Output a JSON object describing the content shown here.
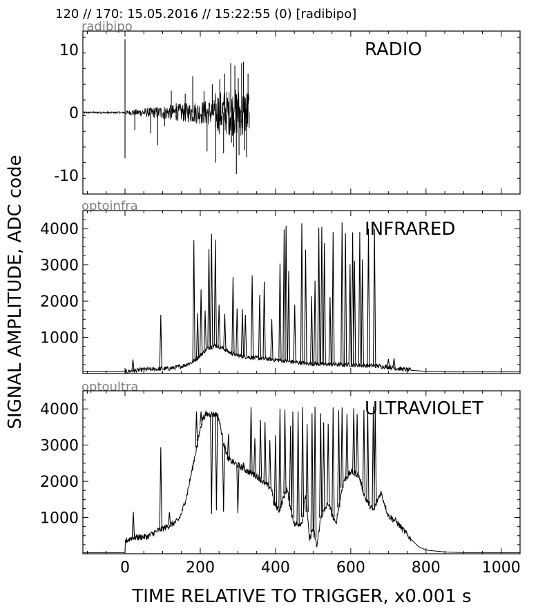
{
  "header": "120 // 170:   15.05.2016 // 15:22:55 (0)  [radibipo]",
  "ylabel": "SIGNAL AMPLITUDE,  ADC code",
  "xlabel": "TIME RELATIVE TO TRIGGER,   x0.001 s",
  "chart_data": [
    {
      "type": "line",
      "id": "radibipo",
      "title": "RADIO",
      "xlim": [
        -112,
        1050
      ],
      "ylim": [
        -13,
        13
      ],
      "xticks": [
        0,
        200,
        400,
        600,
        800,
        1000
      ],
      "yticks": [
        -10,
        0,
        10
      ],
      "ytick_labels": [
        "-10",
        "0",
        "10"
      ],
      "peaks": [
        {
          "x": 0,
          "y": 11.7
        },
        {
          "x": 0,
          "y": -7.3
        },
        {
          "x": 26,
          "y": -2.8
        },
        {
          "x": 68,
          "y": -3.3
        },
        {
          "x": 87,
          "y": -5.2
        },
        {
          "x": 105,
          "y": -2.2
        },
        {
          "x": 123,
          "y": 3.5
        },
        {
          "x": 136,
          "y": 1.5
        },
        {
          "x": 160,
          "y": 3.0
        },
        {
          "x": 180,
          "y": 5.8
        },
        {
          "x": 210,
          "y": 3.4
        },
        {
          "x": 218,
          "y": -6.2
        },
        {
          "x": 232,
          "y": 4.5
        },
        {
          "x": 241,
          "y": -8.0
        },
        {
          "x": 252,
          "y": 5.3
        },
        {
          "x": 262,
          "y": -6.5
        },
        {
          "x": 265,
          "y": 6.2
        },
        {
          "x": 276,
          "y": -3.5
        },
        {
          "x": 281,
          "y": 7.9
        },
        {
          "x": 283,
          "y": -4.8
        },
        {
          "x": 289,
          "y": -5.5
        },
        {
          "x": 292,
          "y": 7.5
        },
        {
          "x": 296,
          "y": -9.8
        },
        {
          "x": 301,
          "y": 5.5
        },
        {
          "x": 303,
          "y": -6.8
        },
        {
          "x": 310,
          "y": 7.9
        },
        {
          "x": 313,
          "y": -3.5
        },
        {
          "x": 315,
          "y": 8.1
        },
        {
          "x": 318,
          "y": -6.0
        },
        {
          "x": 323,
          "y": -7.1
        },
        {
          "x": 327,
          "y": 6.2
        },
        {
          "x": 330,
          "y": -2.5
        }
      ]
    },
    {
      "type": "line",
      "id": "optoinfra",
      "title": "INFRARED",
      "xlim": [
        -112,
        1050
      ],
      "ylim": [
        0,
        4500
      ],
      "xticks": [
        0,
        200,
        400,
        600,
        800,
        1000
      ],
      "yticks": [
        1000,
        2000,
        3000,
        4000
      ],
      "ytick_labels": [
        "1000",
        "2000",
        "3000",
        "4000"
      ],
      "baseline": [
        [
          -112,
          50
        ],
        [
          0,
          50
        ],
        [
          50,
          110
        ],
        [
          120,
          140
        ],
        [
          150,
          200
        ],
        [
          180,
          320
        ],
        [
          200,
          500
        ],
        [
          220,
          700
        ],
        [
          240,
          780
        ],
        [
          260,
          700
        ],
        [
          280,
          570
        ],
        [
          300,
          500
        ],
        [
          330,
          450
        ],
        [
          360,
          420
        ],
        [
          400,
          380
        ],
        [
          440,
          330
        ],
        [
          480,
          280
        ],
        [
          520,
          260
        ],
        [
          560,
          250
        ],
        [
          600,
          240
        ],
        [
          640,
          220
        ],
        [
          670,
          210
        ],
        [
          700,
          180
        ],
        [
          730,
          130
        ],
        [
          760,
          90
        ],
        [
          800,
          60
        ],
        [
          850,
          45
        ],
        [
          1050,
          45
        ]
      ],
      "peaks": [
        {
          "x": 21,
          "y": 390
        },
        {
          "x": 95,
          "y": 1620
        },
        {
          "x": 183,
          "y": 3680
        },
        {
          "x": 193,
          "y": 1670
        },
        {
          "x": 202,
          "y": 2320
        },
        {
          "x": 213,
          "y": 1740
        },
        {
          "x": 223,
          "y": 3440
        },
        {
          "x": 230,
          "y": 3860
        },
        {
          "x": 240,
          "y": 3700
        },
        {
          "x": 250,
          "y": 1900
        },
        {
          "x": 265,
          "y": 1650
        },
        {
          "x": 287,
          "y": 2670
        },
        {
          "x": 298,
          "y": 1800
        },
        {
          "x": 312,
          "y": 1780
        },
        {
          "x": 320,
          "y": 1620
        },
        {
          "x": 338,
          "y": 2710
        },
        {
          "x": 358,
          "y": 2170
        },
        {
          "x": 370,
          "y": 2540
        },
        {
          "x": 390,
          "y": 1500
        },
        {
          "x": 412,
          "y": 3040
        },
        {
          "x": 423,
          "y": 3980
        },
        {
          "x": 428,
          "y": 4080
        },
        {
          "x": 435,
          "y": 2830
        },
        {
          "x": 451,
          "y": 1900
        },
        {
          "x": 470,
          "y": 4150
        },
        {
          "x": 480,
          "y": 3420
        },
        {
          "x": 496,
          "y": 2140
        },
        {
          "x": 505,
          "y": 2560
        },
        {
          "x": 515,
          "y": 4030
        },
        {
          "x": 523,
          "y": 4050
        },
        {
          "x": 530,
          "y": 3600
        },
        {
          "x": 545,
          "y": 2110
        },
        {
          "x": 553,
          "y": 3910
        },
        {
          "x": 577,
          "y": 4170
        },
        {
          "x": 586,
          "y": 3870
        },
        {
          "x": 598,
          "y": 3020
        },
        {
          "x": 605,
          "y": 3900
        },
        {
          "x": 610,
          "y": 3110
        },
        {
          "x": 624,
          "y": 3910
        },
        {
          "x": 631,
          "y": 3150
        },
        {
          "x": 647,
          "y": 4000
        },
        {
          "x": 663,
          "y": 4000
        },
        {
          "x": 700,
          "y": 400
        },
        {
          "x": 715,
          "y": 420
        }
      ]
    },
    {
      "type": "line",
      "id": "optoultra",
      "title": "ULTRAVIOLET",
      "xlim": [
        -112,
        1050
      ],
      "ylim": [
        0,
        4500
      ],
      "xticks": [
        0,
        200,
        400,
        600,
        800,
        1000
      ],
      "yticks": [
        1000,
        2000,
        3000,
        4000
      ],
      "ytick_labels": [
        "1000",
        "2000",
        "3000",
        "4000"
      ],
      "baseline": [
        [
          -112,
          30
        ],
        [
          0,
          30
        ],
        [
          1,
          350
        ],
        [
          20,
          450
        ],
        [
          60,
          470
        ],
        [
          80,
          600
        ],
        [
          110,
          740
        ],
        [
          140,
          900
        ],
        [
          150,
          1100
        ],
        [
          165,
          1650
        ],
        [
          180,
          2400
        ],
        [
          195,
          3200
        ],
        [
          205,
          3700
        ],
        [
          215,
          3850
        ],
        [
          245,
          3850
        ],
        [
          250,
          3700
        ],
        [
          262,
          3050
        ],
        [
          275,
          2600
        ],
        [
          300,
          2450
        ],
        [
          330,
          2250
        ],
        [
          350,
          2150
        ],
        [
          370,
          1950
        ],
        [
          390,
          1800
        ],
        [
          395,
          1400
        ],
        [
          410,
          1200
        ],
        [
          430,
          1800
        ],
        [
          450,
          800
        ],
        [
          470,
          850
        ],
        [
          480,
          1650
        ],
        [
          490,
          400
        ],
        [
          500,
          700
        ],
        [
          510,
          200
        ],
        [
          520,
          1000
        ],
        [
          540,
          1400
        ],
        [
          560,
          800
        ],
        [
          580,
          2000
        ],
        [
          600,
          2250
        ],
        [
          620,
          2200
        ],
        [
          640,
          1500
        ],
        [
          660,
          1200
        ],
        [
          680,
          1700
        ],
        [
          700,
          1050
        ],
        [
          720,
          900
        ],
        [
          740,
          650
        ],
        [
          760,
          400
        ],
        [
          780,
          200
        ],
        [
          800,
          100
        ],
        [
          850,
          50
        ],
        [
          900,
          30
        ],
        [
          1050,
          30
        ]
      ],
      "peaks": [
        {
          "x": 22,
          "y": 1160
        },
        {
          "x": 95,
          "y": 2940
        },
        {
          "x": 118,
          "y": 1150
        },
        {
          "x": 190,
          "y": 3930
        },
        {
          "x": 202,
          "y": 3930
        },
        {
          "x": 230,
          "y": 1100
        },
        {
          "x": 243,
          "y": 1200
        },
        {
          "x": 262,
          "y": 1160
        },
        {
          "x": 275,
          "y": 3310
        },
        {
          "x": 300,
          "y": 1120
        },
        {
          "x": 315,
          "y": 2520
        },
        {
          "x": 335,
          "y": 4050
        },
        {
          "x": 345,
          "y": 3190
        },
        {
          "x": 360,
          "y": 3700
        },
        {
          "x": 372,
          "y": 3640
        },
        {
          "x": 385,
          "y": 3140
        },
        {
          "x": 400,
          "y": 3270
        },
        {
          "x": 412,
          "y": 4010
        },
        {
          "x": 425,
          "y": 3980
        },
        {
          "x": 440,
          "y": 3530
        },
        {
          "x": 446,
          "y": 3930
        },
        {
          "x": 460,
          "y": 3930
        },
        {
          "x": 472,
          "y": 4050
        },
        {
          "x": 484,
          "y": 3580
        },
        {
          "x": 497,
          "y": 3880
        },
        {
          "x": 505,
          "y": 4060
        },
        {
          "x": 520,
          "y": 3880
        },
        {
          "x": 528,
          "y": 3630
        },
        {
          "x": 540,
          "y": 3590
        },
        {
          "x": 553,
          "y": 4040
        },
        {
          "x": 568,
          "y": 3960
        },
        {
          "x": 577,
          "y": 4040
        },
        {
          "x": 590,
          "y": 3860
        },
        {
          "x": 608,
          "y": 4020
        },
        {
          "x": 617,
          "y": 3860
        },
        {
          "x": 635,
          "y": 3970
        },
        {
          "x": 645,
          "y": 4020
        },
        {
          "x": 660,
          "y": 4070
        },
        {
          "x": 665,
          "y": 3950
        }
      ]
    }
  ]
}
